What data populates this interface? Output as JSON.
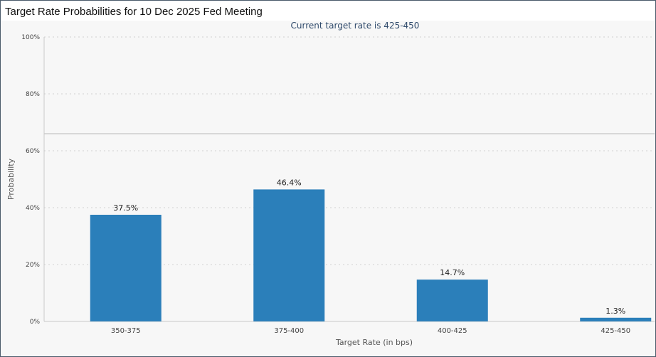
{
  "chart_title": "Target Rate Probabilities for 10 Dec 2025 Fed Meeting",
  "chart_subtitle": "Current target rate is 425-450",
  "chart_data": {
    "type": "bar",
    "title": "Target Rate Probabilities for 10 Dec 2025 Fed Meeting",
    "subtitle": "Current target rate is 425-450",
    "xlabel": "Target Rate (in bps)",
    "ylabel": "Probability",
    "categories": [
      "350-375",
      "375-400",
      "400-425",
      "425-450"
    ],
    "values": [
      37.5,
      46.4,
      14.7,
      1.3
    ],
    "data_labels": [
      "37.5%",
      "46.4%",
      "14.7%",
      "1.3%"
    ],
    "ylim": [
      0,
      100
    ],
    "y_ticks": [
      0,
      20,
      40,
      60,
      80,
      100
    ],
    "y_tick_labels": [
      "0%",
      "20%",
      "40%",
      "60%",
      "80%",
      "100%"
    ],
    "reference_line_value": 66,
    "grid": "horizontal dotted",
    "bar_color": "#2b7fba"
  }
}
